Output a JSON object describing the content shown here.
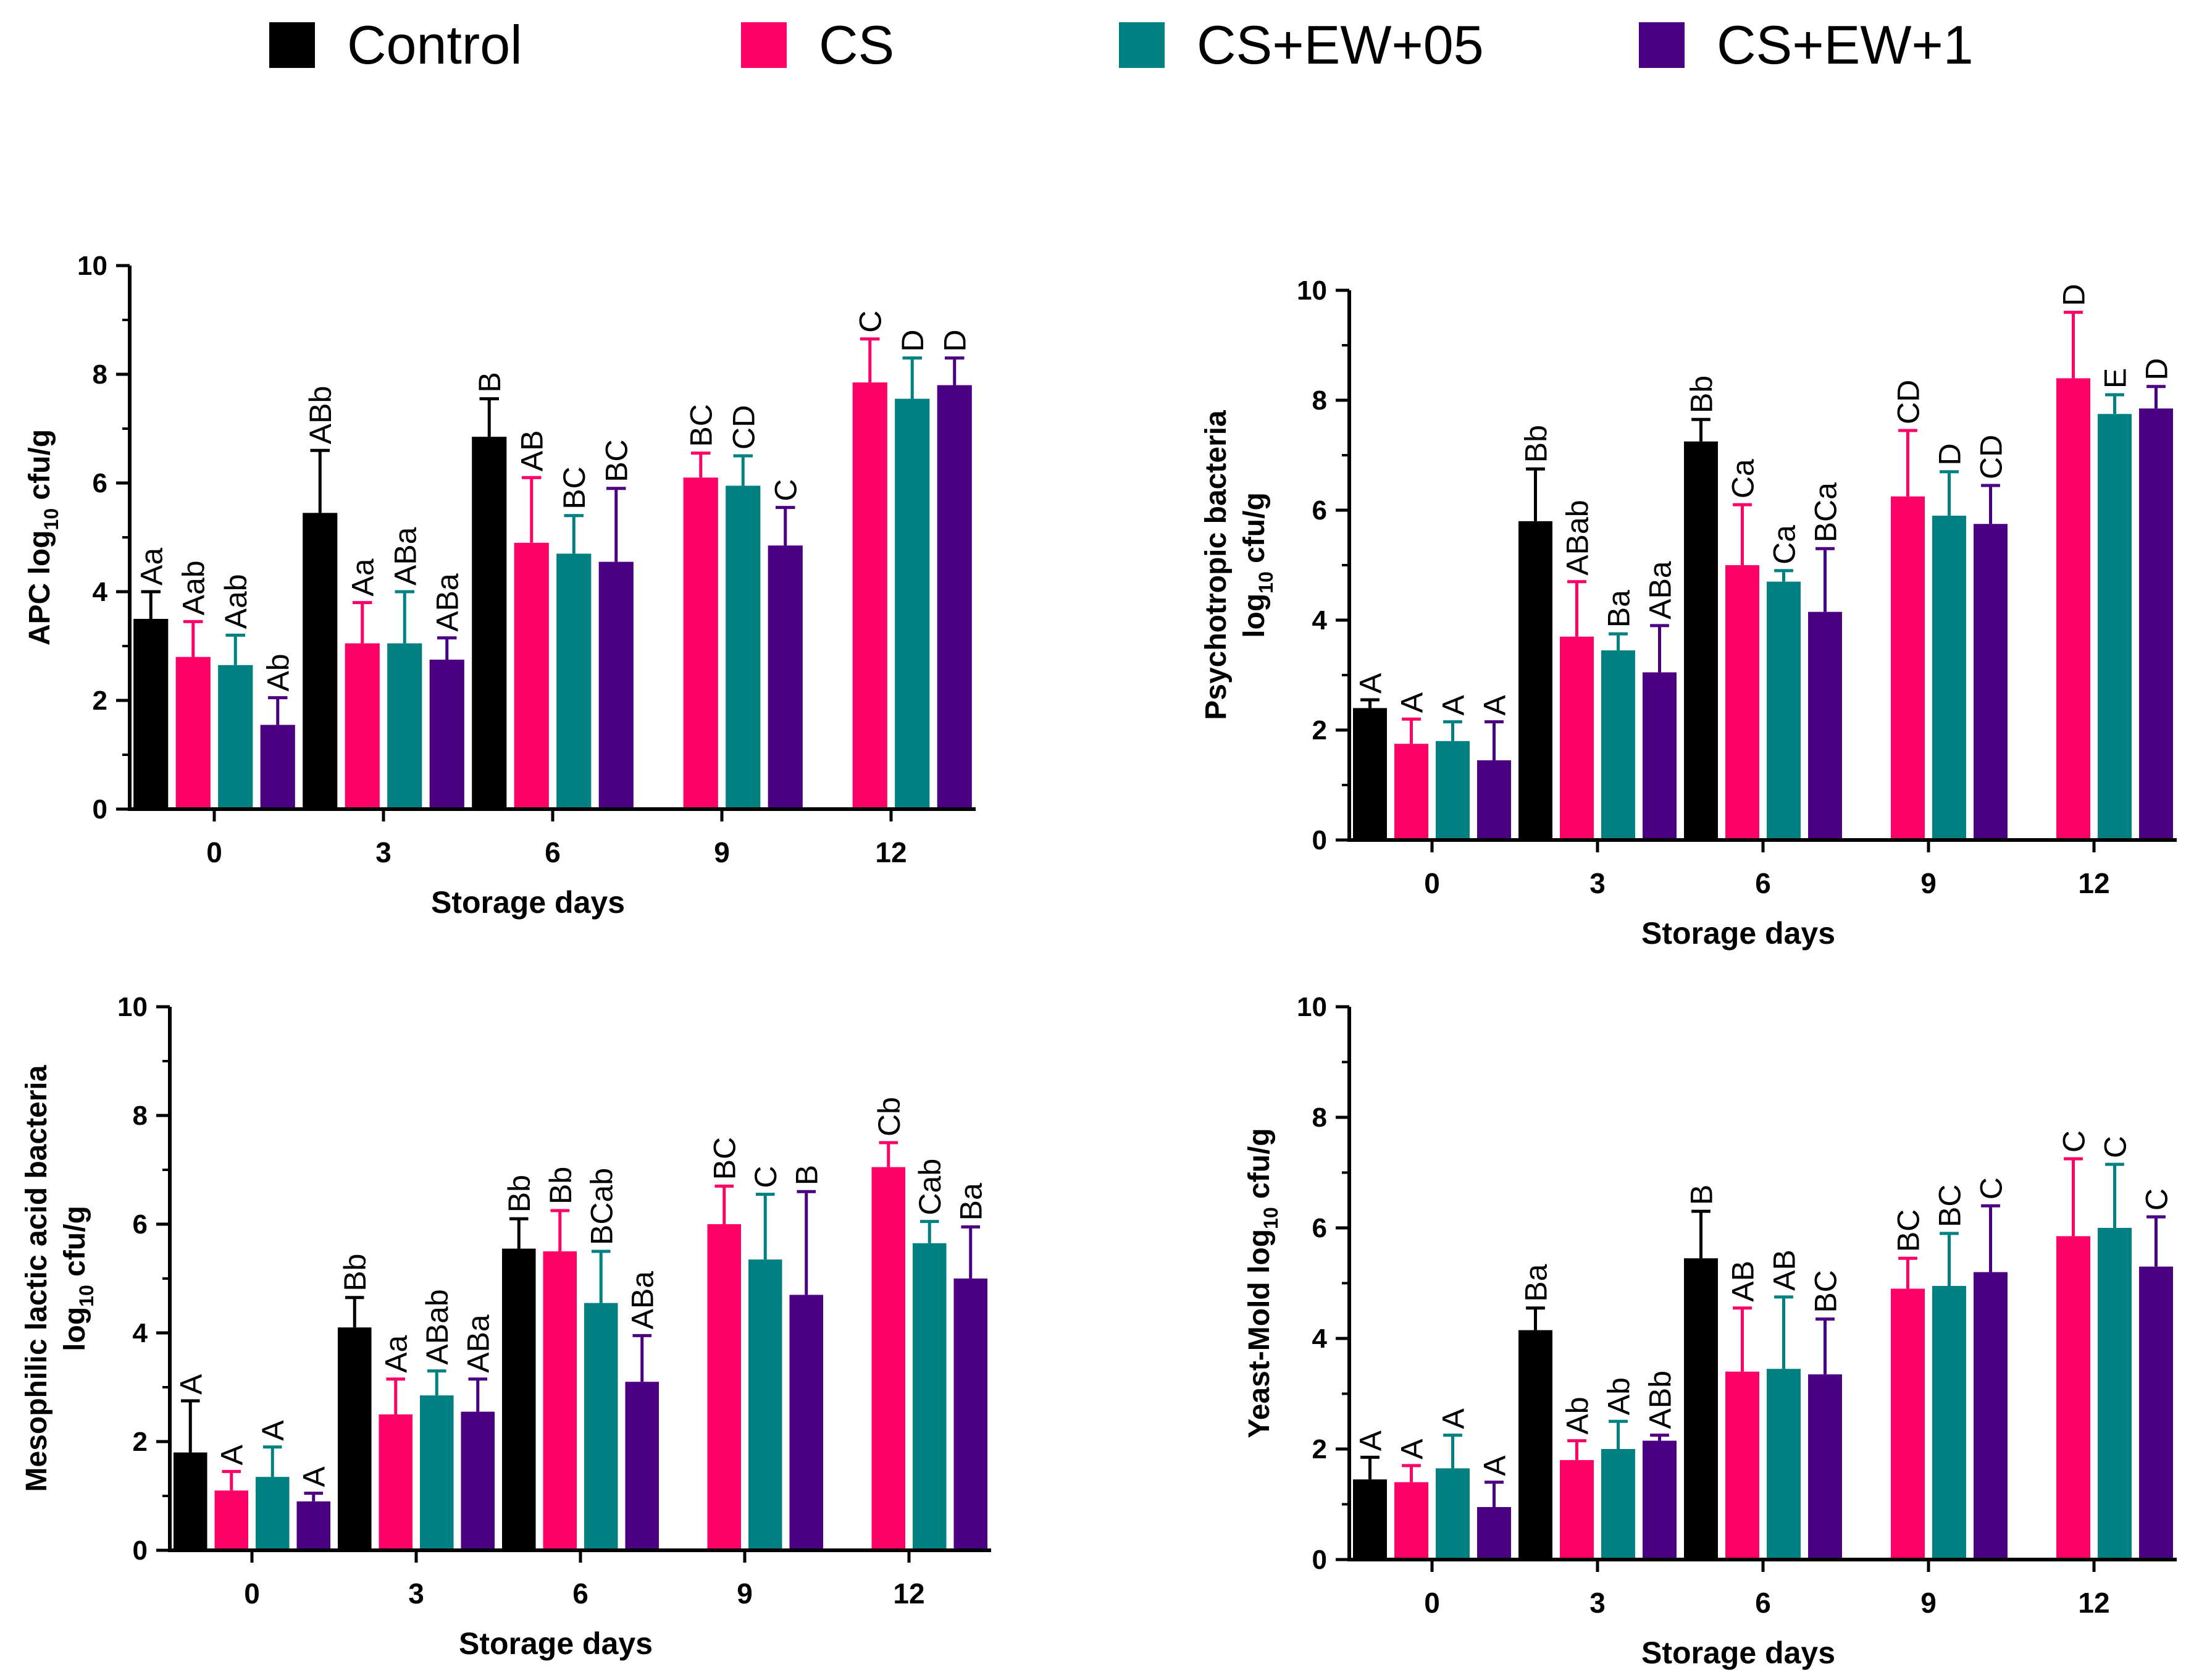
{
  "legend": {
    "items": [
      {
        "label": "Control",
        "color": "#000000"
      },
      {
        "label": "CS",
        "color": "#ff0066"
      },
      {
        "label": "CS+EW+05",
        "color": "#008080"
      },
      {
        "label": "CS+EW+1",
        "color": "#4b0082"
      }
    ]
  },
  "chart_data": [
    {
      "type": "bar",
      "title": "",
      "xlabel": "Storage days",
      "ylabel": "APC log10 cfu/g",
      "categories": [
        "0",
        "3",
        "6",
        "9",
        "12"
      ],
      "ylim": [
        0,
        10
      ],
      "yticks": [
        "0",
        "2",
        "4",
        "6",
        "8",
        "10"
      ],
      "series": [
        {
          "name": "Control",
          "values": [
            3.5,
            5.45,
            6.85,
            null,
            null
          ],
          "errors": [
            0.5,
            1.15,
            0.7,
            null,
            null
          ],
          "labels": [
            "Aa",
            "ABb",
            "B",
            "",
            ""
          ]
        },
        {
          "name": "CS",
          "values": [
            2.8,
            3.05,
            4.9,
            6.1,
            7.85
          ],
          "errors": [
            0.65,
            0.75,
            1.2,
            0.45,
            0.8
          ],
          "labels": [
            "Aab",
            "Aa",
            "AB",
            "BC",
            "C"
          ]
        },
        {
          "name": "CS+EW+05",
          "values": [
            2.65,
            3.05,
            4.7,
            5.95,
            7.55
          ],
          "errors": [
            0.55,
            0.95,
            0.7,
            0.55,
            0.75
          ],
          "labels": [
            "Aab",
            "ABa",
            "BC",
            "CD",
            "D"
          ]
        },
        {
          "name": "CS+EW+1",
          "values": [
            1.55,
            2.75,
            4.55,
            4.85,
            7.8
          ],
          "errors": [
            0.5,
            0.4,
            1.35,
            0.7,
            0.5
          ],
          "labels": [
            "Ab",
            "ABa",
            "BC",
            "C",
            "D"
          ]
        }
      ]
    },
    {
      "type": "bar",
      "title": "",
      "xlabel": "Storage days",
      "ylabel": "Psychotropic bacteria log10 cfu/g",
      "categories": [
        "0",
        "3",
        "6",
        "9",
        "12"
      ],
      "ylim": [
        0,
        10
      ],
      "yticks": [
        "0",
        "2",
        "4",
        "6",
        "8",
        "10"
      ],
      "series": [
        {
          "name": "Control",
          "values": [
            2.4,
            5.8,
            7.25,
            null,
            null
          ],
          "errors": [
            0.15,
            0.95,
            0.4,
            null,
            null
          ],
          "labels": [
            "A",
            "Bb",
            "Bb",
            "",
            ""
          ]
        },
        {
          "name": "CS",
          "values": [
            1.75,
            3.7,
            5.0,
            6.25,
            8.4
          ],
          "errors": [
            0.45,
            1.0,
            1.1,
            1.2,
            1.2
          ],
          "labels": [
            "A",
            "ABab",
            "Ca",
            "CD",
            "D"
          ]
        },
        {
          "name": "CS+EW+05",
          "values": [
            1.8,
            3.45,
            4.7,
            5.9,
            7.75
          ],
          "errors": [
            0.35,
            0.3,
            0.2,
            0.8,
            0.35
          ],
          "labels": [
            "A",
            "Ba",
            "Ca",
            "D",
            "E"
          ]
        },
        {
          "name": "CS+EW+1",
          "values": [
            1.45,
            3.05,
            4.15,
            5.75,
            7.85
          ],
          "errors": [
            0.7,
            0.85,
            1.15,
            0.7,
            0.4
          ],
          "labels": [
            "A",
            "ABa",
            "BCa",
            "CD",
            "D"
          ]
        }
      ]
    },
    {
      "type": "bar",
      "title": "",
      "xlabel": "Storage days",
      "ylabel": "Mesophilic lactic acid bacteria log10 cfu/g",
      "categories": [
        "0",
        "3",
        "6",
        "9",
        "12"
      ],
      "ylim": [
        0,
        10
      ],
      "yticks": [
        "0",
        "2",
        "4",
        "6",
        "8",
        "10"
      ],
      "series": [
        {
          "name": "Control",
          "values": [
            1.8,
            4.1,
            5.55,
            null,
            null
          ],
          "errors": [
            0.95,
            0.55,
            0.55,
            null,
            null
          ],
          "labels": [
            "A",
            "Bb",
            "Bb",
            "",
            ""
          ]
        },
        {
          "name": "CS",
          "values": [
            1.1,
            2.5,
            5.5,
            6.0,
            7.05
          ],
          "errors": [
            0.35,
            0.65,
            0.75,
            0.7,
            0.45
          ],
          "labels": [
            "A",
            "Aa",
            "Bb",
            "BC",
            "Cb"
          ]
        },
        {
          "name": "CS+EW+05",
          "values": [
            1.35,
            2.85,
            4.55,
            5.35,
            5.65
          ],
          "errors": [
            0.55,
            0.45,
            0.95,
            1.2,
            0.4
          ],
          "labels": [
            "A",
            "ABab",
            "BCab",
            "C",
            "Cab"
          ]
        },
        {
          "name": "CS+EW+1",
          "values": [
            0.9,
            2.55,
            3.1,
            4.7,
            5.0
          ],
          "errors": [
            0.15,
            0.6,
            0.85,
            1.9,
            0.95
          ],
          "labels": [
            "A",
            "ABa",
            "ABa",
            "B",
            "Ba"
          ]
        }
      ]
    },
    {
      "type": "bar",
      "title": "",
      "xlabel": "Storage days",
      "ylabel": "Yeast-Mold log10 cfu/g",
      "categories": [
        "0",
        "3",
        "6",
        "9",
        "12"
      ],
      "ylim": [
        0,
        10
      ],
      "yticks": [
        "0",
        "2",
        "4",
        "6",
        "8",
        "10"
      ],
      "series": [
        {
          "name": "Control",
          "values": [
            1.45,
            4.15,
            5.45,
            null,
            null
          ],
          "errors": [
            0.4,
            0.4,
            0.85,
            null,
            null
          ],
          "labels": [
            "A",
            "Ba",
            "B",
            "",
            ""
          ]
        },
        {
          "name": "CS",
          "values": [
            1.4,
            1.8,
            3.4,
            4.9,
            5.85
          ],
          "errors": [
            0.3,
            0.35,
            1.15,
            0.55,
            1.4
          ],
          "labels": [
            "A",
            "Ab",
            "AB",
            "BC",
            "C"
          ]
        },
        {
          "name": "CS+EW+05",
          "values": [
            1.65,
            2.0,
            3.45,
            4.95,
            6.0
          ],
          "errors": [
            0.6,
            0.5,
            1.3,
            0.95,
            1.15
          ],
          "labels": [
            "A",
            "Ab",
            "AB",
            "BC",
            "C"
          ]
        },
        {
          "name": "CS+EW+1",
          "values": [
            0.95,
            2.15,
            3.35,
            5.2,
            5.3
          ],
          "errors": [
            0.45,
            0.1,
            1.0,
            1.2,
            0.9
          ],
          "labels": [
            "A",
            "ABb",
            "BC",
            "C",
            "C"
          ]
        }
      ]
    }
  ]
}
